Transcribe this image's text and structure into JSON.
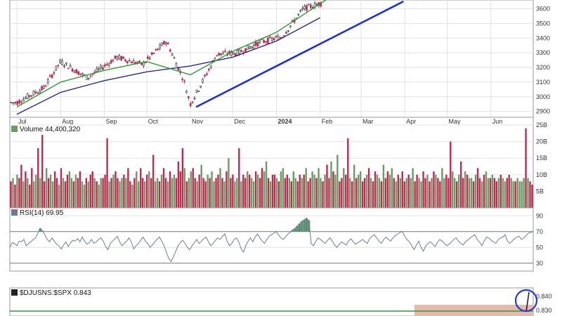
{
  "chart_data": [
    {
      "type": "candlestick",
      "panel": "price",
      "yticks": [
        2900,
        3000,
        3100,
        3200,
        3300,
        3400,
        3500,
        3600
      ],
      "ylim": [
        2860,
        3660
      ],
      "close_approx": [
        {
          "x": "2023-07-01",
          "y": 2960
        },
        {
          "x": "2023-07-20",
          "y": 3060
        },
        {
          "x": "2023-08-01",
          "y": 3240
        },
        {
          "x": "2023-08-20",
          "y": 3130
        },
        {
          "x": "2023-09-10",
          "y": 3270
        },
        {
          "x": "2023-09-28",
          "y": 3220
        },
        {
          "x": "2023-10-15",
          "y": 3380
        },
        {
          "x": "2023-10-27",
          "y": 3120
        },
        {
          "x": "2023-11-01",
          "y": 2950
        },
        {
          "x": "2023-11-20",
          "y": 3290
        },
        {
          "x": "2023-12-05",
          "y": 3300
        },
        {
          "x": "2023-12-20",
          "y": 3370
        },
        {
          "x": "2024-01-05",
          "y": 3410
        },
        {
          "x": "2024-01-20",
          "y": 3600
        },
        {
          "x": "2024-02-02",
          "y": 3640
        }
      ],
      "ma_fast": [
        {
          "x": "2023-07-01",
          "y": 2930
        },
        {
          "x": "2023-08-01",
          "y": 3100
        },
        {
          "x": "2023-09-01",
          "y": 3180
        },
        {
          "x": "2023-10-01",
          "y": 3240
        },
        {
          "x": "2023-11-01",
          "y": 3150
        },
        {
          "x": "2023-12-01",
          "y": 3310
        },
        {
          "x": "2024-01-01",
          "y": 3440
        },
        {
          "x": "2024-02-05",
          "y": 3660
        }
      ],
      "ma_slow": [
        {
          "x": "2023-07-01",
          "y": 2880
        },
        {
          "x": "2023-08-01",
          "y": 3030
        },
        {
          "x": "2023-09-01",
          "y": 3110
        },
        {
          "x": "2023-10-01",
          "y": 3170
        },
        {
          "x": "2023-11-01",
          "y": 3210
        },
        {
          "x": "2023-12-01",
          "y": 3270
        },
        {
          "x": "2024-01-01",
          "y": 3380
        },
        {
          "x": "2024-02-01",
          "y": 3540
        }
      ],
      "trendline": [
        {
          "x": "2023-11-05",
          "y": 2930
        },
        {
          "x": "2024-03-31",
          "y": 3650
        }
      ]
    },
    {
      "type": "bar",
      "panel": "volume",
      "label": "Volume 44,400,320",
      "unit": "B",
      "yticks": [
        5,
        10,
        15,
        20,
        25
      ],
      "ylim": [
        0,
        25
      ],
      "values": [
        8,
        9,
        7,
        10,
        9,
        13,
        8,
        11,
        9,
        7,
        12,
        8,
        10,
        18,
        9,
        22,
        8,
        12,
        9,
        10,
        8,
        11,
        9,
        7,
        12,
        9,
        8,
        10,
        11,
        9,
        8,
        10,
        9,
        11,
        8,
        7,
        9,
        8,
        10,
        11,
        9,
        8,
        7,
        9,
        9,
        10,
        21,
        8,
        9,
        10,
        11,
        9,
        8,
        9,
        10,
        9,
        12,
        8,
        7,
        9,
        11,
        8,
        12,
        9,
        8,
        10,
        11,
        9,
        16,
        8,
        9,
        8,
        10,
        12,
        9,
        8,
        11,
        9,
        10,
        9,
        14,
        11,
        18,
        12,
        8,
        9,
        11,
        12,
        9,
        8,
        10,
        13,
        9,
        8,
        10,
        9,
        11,
        8,
        9,
        10,
        12,
        9,
        8,
        11,
        15,
        9,
        10,
        8,
        9,
        18,
        8,
        10,
        9,
        11,
        10,
        9,
        8,
        11,
        10,
        9,
        12,
        11,
        14,
        9,
        8,
        10,
        10,
        9,
        8,
        11,
        12,
        9,
        10,
        9,
        8,
        11,
        9,
        8,
        10,
        9,
        10,
        12,
        8,
        9,
        11,
        10,
        9,
        12,
        9,
        8,
        10,
        13,
        9,
        14,
        11,
        10,
        16,
        8,
        9,
        12,
        10,
        21,
        9,
        8,
        13,
        9,
        10,
        11,
        8,
        9,
        10,
        12,
        9,
        8,
        11,
        10,
        9,
        8,
        13,
        9,
        11,
        10,
        12,
        9,
        8,
        10,
        9,
        11,
        8,
        9,
        10,
        9,
        12,
        8,
        10,
        9,
        8,
        11,
        9,
        10,
        8,
        9,
        11,
        10,
        9,
        8,
        12,
        9,
        10,
        9,
        20,
        11,
        9,
        8,
        10,
        14,
        9,
        11,
        10,
        9,
        9,
        8,
        10,
        12,
        9,
        8,
        10,
        11,
        9,
        9,
        10,
        9,
        8,
        9,
        10,
        9,
        8,
        9,
        10,
        9,
        8,
        8,
        9,
        8,
        8,
        9,
        24,
        9,
        8,
        7
      ],
      "up": [
        0,
        1,
        0,
        1,
        0,
        0,
        1,
        0,
        1,
        0,
        0,
        1,
        1,
        0,
        1,
        0,
        0,
        1,
        0,
        1,
        1,
        0,
        0,
        1,
        0,
        1,
        0,
        0,
        1,
        1,
        0,
        1,
        0,
        0,
        1,
        1,
        0,
        1,
        0,
        0,
        1,
        0,
        1,
        1,
        0,
        0,
        0,
        1,
        0,
        1,
        0,
        0,
        1,
        1,
        0,
        1,
        0,
        0,
        1,
        0,
        1,
        1,
        0,
        0,
        1,
        0,
        1,
        0,
        0,
        1,
        1,
        0,
        1,
        0,
        0,
        1,
        0,
        1,
        1,
        0,
        0,
        0,
        0,
        1,
        0,
        1,
        1,
        0,
        0,
        1,
        0,
        1,
        0,
        0,
        1,
        0,
        1,
        1,
        0,
        0,
        1,
        0,
        1,
        0,
        1,
        0,
        0,
        1,
        1,
        0,
        1,
        0,
        0,
        1,
        0,
        1,
        1,
        0,
        1,
        0,
        0,
        1,
        1,
        0,
        1,
        0,
        0,
        1,
        0,
        1,
        1,
        0,
        0,
        1,
        0,
        1,
        1,
        0,
        0,
        1,
        0,
        1,
        0,
        0,
        1,
        1,
        0,
        1,
        1,
        0,
        1,
        0,
        0,
        1,
        0,
        1,
        1,
        0,
        0,
        1,
        0,
        0,
        1,
        0,
        1,
        0,
        1,
        1,
        0,
        0,
        1,
        0,
        1,
        0,
        0,
        1,
        1,
        0,
        1,
        0,
        0,
        1,
        1,
        0,
        1,
        0,
        1,
        0,
        0,
        1,
        0,
        1,
        1,
        0,
        0,
        1,
        1,
        0,
        0,
        1,
        0,
        1,
        0,
        1,
        0,
        0,
        1,
        1,
        0,
        0,
        0,
        1,
        1,
        0,
        1,
        0,
        0,
        1,
        0,
        1,
        1,
        0,
        1,
        0,
        0,
        1,
        0,
        1,
        1,
        0,
        1,
        0,
        0,
        1,
        0,
        1,
        1,
        0,
        0,
        1,
        1,
        0,
        1,
        1,
        1,
        1,
        0,
        1,
        0
      ]
    },
    {
      "type": "line",
      "panel": "rsi",
      "label": "RSI(14) 69.95",
      "yticks": [
        30,
        50,
        70,
        90
      ],
      "ylim": [
        20,
        100
      ],
      "reference_lines": [
        30,
        70
      ],
      "values": [
        50,
        56,
        55,
        52,
        58,
        57,
        60,
        52,
        55,
        57,
        60,
        62,
        68,
        74,
        71,
        66,
        60,
        57,
        62,
        58,
        54,
        52,
        48,
        53,
        57,
        51,
        56,
        59,
        58,
        61,
        57,
        63,
        58,
        54,
        56,
        60,
        55,
        57,
        60,
        62,
        58,
        51,
        47,
        55,
        58,
        61,
        64,
        57,
        52,
        55,
        58,
        62,
        57,
        48,
        52,
        55,
        59,
        63,
        58,
        55,
        50,
        53,
        57,
        60,
        63,
        58,
        52,
        44,
        36,
        32,
        38,
        45,
        52,
        56,
        59,
        55,
        50,
        47,
        52,
        56,
        60,
        55,
        58,
        61,
        63,
        57,
        52,
        55,
        59,
        62,
        60,
        64,
        67,
        58,
        52,
        55,
        60,
        62,
        57,
        48,
        44,
        52,
        58,
        62,
        57,
        63,
        67,
        62,
        58,
        55,
        60,
        64,
        66,
        68,
        70,
        66,
        62,
        60,
        63,
        67,
        69,
        72,
        74,
        77,
        80,
        83,
        85,
        87,
        84,
        55,
        52,
        58,
        62,
        60,
        57,
        55,
        59,
        62,
        58,
        53,
        50,
        54,
        57,
        55,
        53,
        58,
        61,
        57,
        54,
        56,
        58,
        60,
        57,
        55,
        61,
        64,
        66,
        62,
        58,
        55,
        60,
        63,
        60,
        58,
        62,
        65,
        67,
        69,
        70,
        64,
        60,
        57,
        52,
        47,
        53,
        58,
        50,
        45,
        52,
        55,
        57,
        54,
        51,
        56,
        60,
        58,
        55,
        52,
        54,
        57,
        60,
        62,
        58,
        55,
        53,
        57,
        59,
        62,
        64,
        66,
        60,
        57,
        52,
        58,
        63,
        62,
        59,
        57,
        55,
        60,
        62,
        63,
        66,
        58,
        55,
        58,
        61,
        63,
        64,
        60,
        62,
        65,
        68,
        69,
        70
      ]
    },
    {
      "type": "line",
      "panel": "ratio",
      "label": "$DJUSNS:$SPX 0.843",
      "yticks": [
        0.83,
        0.84
      ],
      "ylim": [
        0.826,
        0.846
      ],
      "values": [
        {
          "x": "2024-06-26",
          "y": 0.829
        },
        {
          "x": "2024-06-28",
          "y": 0.843
        }
      ]
    }
  ],
  "months": [
    "Jul",
    "Aug",
    "Sep",
    "Oct",
    "Nov",
    "Dec",
    "2024",
    "Feb",
    "Mar",
    "Apr",
    "May",
    "Jun"
  ],
  "colors": {
    "up": "#6b9a64",
    "down": "#c3264e",
    "ma_fast": "#2e9a35",
    "ma_slow": "#2a2a85",
    "trendline": "#1f2fd4",
    "rsi": "#6f7a90",
    "annotation_circle": "#1f3ad8",
    "ratio_band": "#e7b9aa"
  }
}
